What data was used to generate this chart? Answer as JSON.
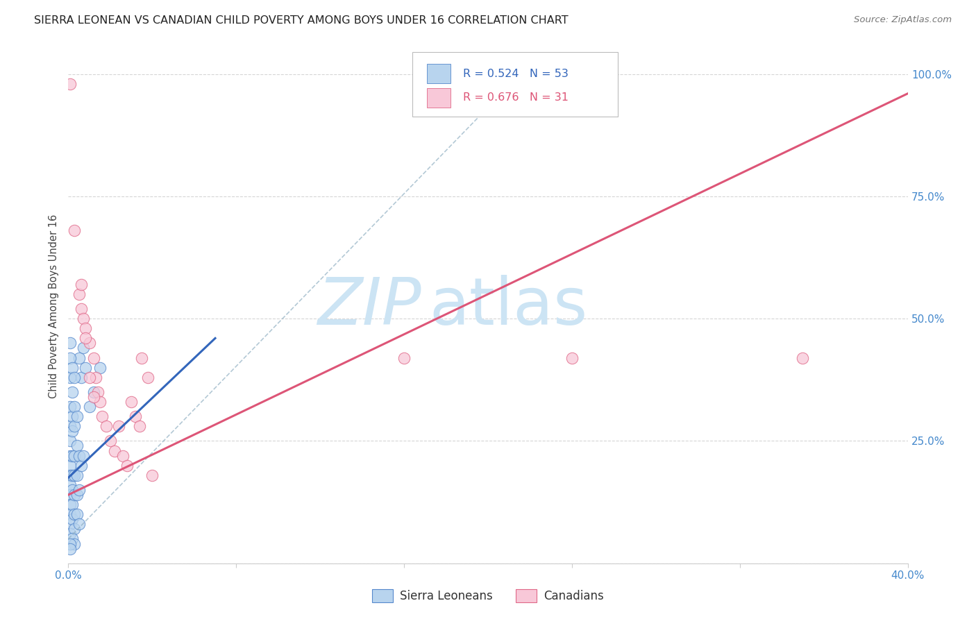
{
  "title": "SIERRA LEONEAN VS CANADIAN CHILD POVERTY AMONG BOYS UNDER 16 CORRELATION CHART",
  "source": "Source: ZipAtlas.com",
  "ylabel": "Child Poverty Among Boys Under 16",
  "watermark": "ZIPatlas",
  "legend_r_blue": "R = 0.524",
  "legend_n_blue": "N = 53",
  "legend_r_pink": "R = 0.676",
  "legend_n_pink": "N = 31",
  "blue_fill": "#b8d4ee",
  "blue_edge": "#5588cc",
  "pink_fill": "#f8c8d8",
  "pink_edge": "#e06888",
  "blue_line_color": "#3366bb",
  "pink_line_color": "#dd5577",
  "blue_scatter": [
    [
      0.001,
      0.32
    ],
    [
      0.001,
      0.28
    ],
    [
      0.001,
      0.25
    ],
    [
      0.001,
      0.22
    ],
    [
      0.001,
      0.2
    ],
    [
      0.001,
      0.18
    ],
    [
      0.001,
      0.16
    ],
    [
      0.001,
      0.14
    ],
    [
      0.001,
      0.12
    ],
    [
      0.001,
      0.1
    ],
    [
      0.001,
      0.08
    ],
    [
      0.001,
      0.06
    ],
    [
      0.002,
      0.3
    ],
    [
      0.002,
      0.27
    ],
    [
      0.002,
      0.22
    ],
    [
      0.002,
      0.18
    ],
    [
      0.002,
      0.15
    ],
    [
      0.002,
      0.12
    ],
    [
      0.002,
      0.09
    ],
    [
      0.003,
      0.28
    ],
    [
      0.003,
      0.22
    ],
    [
      0.003,
      0.18
    ],
    [
      0.003,
      0.14
    ],
    [
      0.003,
      0.1
    ],
    [
      0.003,
      0.07
    ],
    [
      0.004,
      0.24
    ],
    [
      0.004,
      0.18
    ],
    [
      0.004,
      0.14
    ],
    [
      0.004,
      0.1
    ],
    [
      0.005,
      0.42
    ],
    [
      0.005,
      0.22
    ],
    [
      0.005,
      0.15
    ],
    [
      0.005,
      0.08
    ],
    [
      0.006,
      0.38
    ],
    [
      0.006,
      0.2
    ],
    [
      0.007,
      0.44
    ],
    [
      0.007,
      0.22
    ],
    [
      0.008,
      0.4
    ],
    [
      0.01,
      0.32
    ],
    [
      0.012,
      0.35
    ],
    [
      0.015,
      0.4
    ],
    [
      0.002,
      0.35
    ],
    [
      0.001,
      0.38
    ],
    [
      0.003,
      0.32
    ],
    [
      0.004,
      0.3
    ],
    [
      0.001,
      0.42
    ],
    [
      0.002,
      0.4
    ],
    [
      0.001,
      0.45
    ],
    [
      0.003,
      0.38
    ],
    [
      0.002,
      0.05
    ],
    [
      0.003,
      0.04
    ],
    [
      0.001,
      0.04
    ],
    [
      0.001,
      0.03
    ]
  ],
  "pink_scatter": [
    [
      0.001,
      0.98
    ],
    [
      0.003,
      0.68
    ],
    [
      0.005,
      0.55
    ],
    [
      0.006,
      0.52
    ],
    [
      0.007,
      0.5
    ],
    [
      0.008,
      0.48
    ],
    [
      0.01,
      0.45
    ],
    [
      0.012,
      0.42
    ],
    [
      0.013,
      0.38
    ],
    [
      0.014,
      0.35
    ],
    [
      0.015,
      0.33
    ],
    [
      0.016,
      0.3
    ],
    [
      0.018,
      0.28
    ],
    [
      0.02,
      0.25
    ],
    [
      0.022,
      0.23
    ],
    [
      0.024,
      0.28
    ],
    [
      0.026,
      0.22
    ],
    [
      0.028,
      0.2
    ],
    [
      0.03,
      0.33
    ],
    [
      0.032,
      0.3
    ],
    [
      0.034,
      0.28
    ],
    [
      0.035,
      0.42
    ],
    [
      0.038,
      0.38
    ],
    [
      0.04,
      0.18
    ],
    [
      0.006,
      0.57
    ],
    [
      0.008,
      0.46
    ],
    [
      0.01,
      0.38
    ],
    [
      0.012,
      0.34
    ],
    [
      0.35,
      0.42
    ],
    [
      0.16,
      0.42
    ],
    [
      0.24,
      0.42
    ]
  ],
  "xlim": [
    0.0,
    0.4
  ],
  "ylim": [
    0.0,
    1.05
  ],
  "xticks": [
    0.0,
    0.08,
    0.16,
    0.24,
    0.32,
    0.4
  ],
  "yticks_right": [
    0.0,
    0.25,
    0.5,
    0.75,
    1.0
  ],
  "ytick_right_labels": [
    "",
    "25.0%",
    "50.0%",
    "75.0%",
    "100.0%"
  ],
  "grid_color": "#cccccc",
  "background_color": "#ffffff",
  "title_fontsize": 11.5,
  "watermark_color": "#cce4f4",
  "scatter_size": 140
}
